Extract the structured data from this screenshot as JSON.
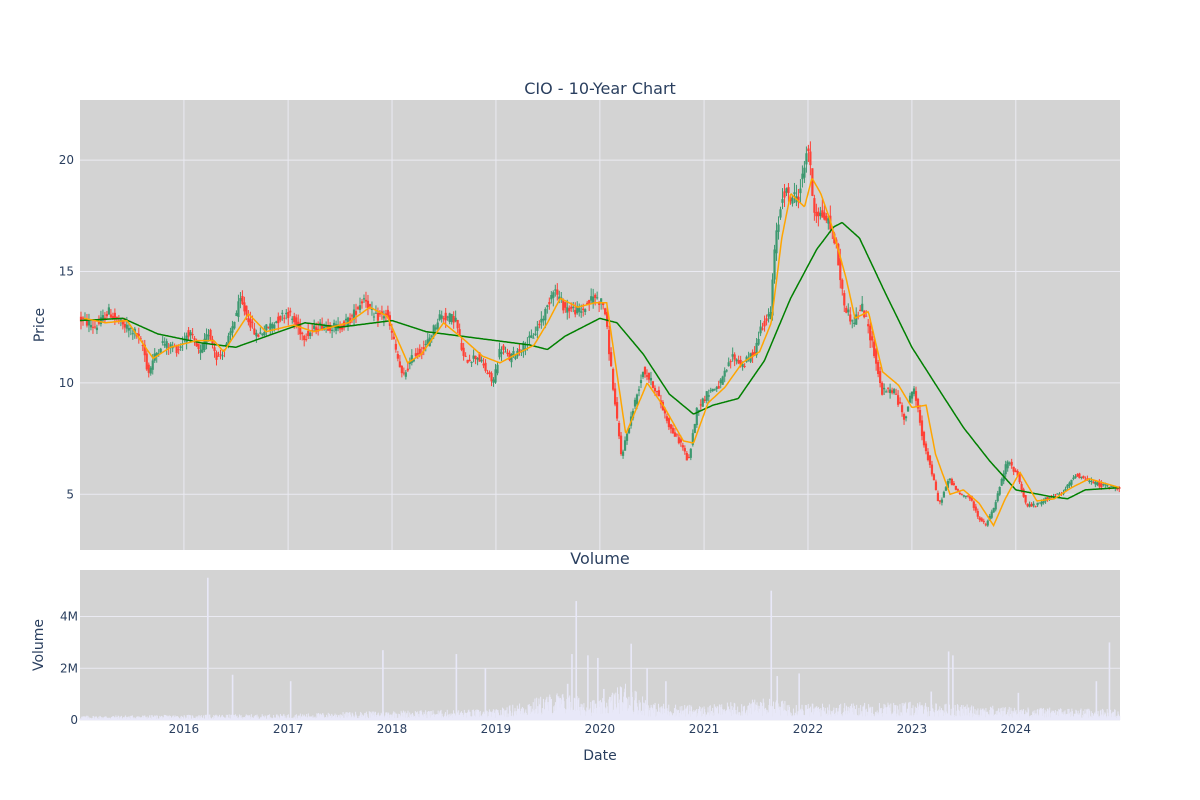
{
  "figure": {
    "title": "CIO - 10-Year Chart",
    "subplot_title": "Volume",
    "price_ylabel": "Price",
    "volume_ylabel": "Volume",
    "xlabel": "Date",
    "plot_bg": "#d3d3d3",
    "grid_color": "#eaeaf2",
    "text_color": "#2a3f5f"
  },
  "chart_data": [
    {
      "type": "candlestick",
      "title": "CIO - 10-Year Chart",
      "xlabel": "",
      "ylabel": "Price",
      "xlim": [
        "2015-01-01",
        "2025-01-01"
      ],
      "ylim": [
        2.5,
        22.7
      ],
      "yticks": [
        5,
        10,
        15,
        20
      ],
      "xticks": [
        "2016",
        "2017",
        "2018",
        "2019",
        "2020",
        "2021",
        "2022",
        "2023",
        "2024"
      ],
      "grid": true,
      "colors": {
        "up": "#3d9970",
        "down": "#ff4136",
        "ma_short": "#ffa500",
        "ma_long": "#008000"
      },
      "price_path": [
        [
          "2015-01-01",
          12.9
        ],
        [
          "2015-03-01",
          12.5
        ],
        [
          "2015-04-15",
          13.2
        ],
        [
          "2015-06-01",
          12.6
        ],
        [
          "2015-07-15",
          12.3
        ],
        [
          "2015-08-15",
          11.6
        ],
        [
          "2015-09-01",
          10.4
        ],
        [
          "2015-09-20",
          11.1
        ],
        [
          "2015-10-20",
          11.8
        ],
        [
          "2015-12-15",
          11.5
        ],
        [
          "2016-01-20",
          12.3
        ],
        [
          "2016-03-01",
          11.3
        ],
        [
          "2016-04-01",
          12.3
        ],
        [
          "2016-05-01",
          11.1
        ],
        [
          "2016-06-01",
          11.6
        ],
        [
          "2016-07-20",
          13.7
        ],
        [
          "2016-09-15",
          12.1
        ],
        [
          "2016-11-15",
          12.7
        ],
        [
          "2017-01-01",
          13.2
        ],
        [
          "2017-03-01",
          12.1
        ],
        [
          "2017-05-01",
          12.6
        ],
        [
          "2017-07-01",
          12.5
        ],
        [
          "2017-08-15",
          12.9
        ],
        [
          "2017-09-01",
          13.3
        ],
        [
          "2017-10-01",
          13.9
        ],
        [
          "2017-11-01",
          12.9
        ],
        [
          "2017-12-15",
          13.1
        ],
        [
          "2018-01-10",
          11.9
        ],
        [
          "2018-02-10",
          10.2
        ],
        [
          "2018-03-20",
          11.2
        ],
        [
          "2018-05-01",
          11.6
        ],
        [
          "2018-06-20",
          13.0
        ],
        [
          "2018-08-15",
          12.9
        ],
        [
          "2018-09-15",
          11.0
        ],
        [
          "2018-11-01",
          11.2
        ],
        [
          "2018-12-25",
          10.0
        ],
        [
          "2019-01-20",
          11.6
        ],
        [
          "2019-02-20",
          11.1
        ],
        [
          "2019-04-15",
          11.7
        ],
        [
          "2019-05-15",
          12.1
        ],
        [
          "2019-07-01",
          13.3
        ],
        [
          "2019-07-25",
          14.3
        ],
        [
          "2019-09-01",
          13.4
        ],
        [
          "2019-11-01",
          13.2
        ],
        [
          "2019-12-15",
          13.9
        ],
        [
          "2020-01-20",
          13.5
        ],
        [
          "2020-02-25",
          9.2
        ],
        [
          "2020-03-20",
          6.7
        ],
        [
          "2020-04-20",
          8.3
        ],
        [
          "2020-06-05",
          10.6
        ],
        [
          "2020-07-15",
          9.8
        ],
        [
          "2020-09-10",
          7.9
        ],
        [
          "2020-10-20",
          7.2
        ],
        [
          "2020-11-10",
          6.4
        ],
        [
          "2020-12-10",
          8.8
        ],
        [
          "2021-01-20",
          9.6
        ],
        [
          "2021-03-01",
          9.9
        ],
        [
          "2021-04-15",
          11.2
        ],
        [
          "2021-05-20",
          10.8
        ],
        [
          "2021-07-01",
          11.4
        ],
        [
          "2021-07-25",
          12.6
        ],
        [
          "2021-08-25",
          13.0
        ],
        [
          "2021-09-10",
          16.1
        ],
        [
          "2021-10-10",
          18.7
        ],
        [
          "2021-11-01",
          18.3
        ],
        [
          "2021-12-01",
          18.4
        ],
        [
          "2021-12-20",
          19.4
        ],
        [
          "2022-01-03",
          20.9
        ],
        [
          "2022-01-25",
          17.8
        ],
        [
          "2022-03-15",
          17.3
        ],
        [
          "2022-04-10",
          16.4
        ],
        [
          "2022-05-10",
          13.6
        ],
        [
          "2022-06-10",
          12.7
        ],
        [
          "2022-07-15",
          13.4
        ],
        [
          "2022-08-20",
          11.7
        ],
        [
          "2022-09-20",
          9.6
        ],
        [
          "2022-11-01",
          9.7
        ],
        [
          "2022-12-10",
          8.4
        ],
        [
          "2023-01-10",
          9.9
        ],
        [
          "2023-02-10",
          7.6
        ],
        [
          "2023-03-15",
          6.0
        ],
        [
          "2023-04-10",
          4.5
        ],
        [
          "2023-05-15",
          5.7
        ],
        [
          "2023-06-20",
          5.0
        ],
        [
          "2023-07-25",
          4.9
        ],
        [
          "2023-08-25",
          4.0
        ],
        [
          "2023-09-20",
          3.6
        ],
        [
          "2023-10-20",
          4.4
        ],
        [
          "2023-12-05",
          6.5
        ],
        [
          "2024-01-10",
          5.9
        ],
        [
          "2024-02-10",
          4.5
        ],
        [
          "2024-03-15",
          4.5
        ],
        [
          "2024-05-01",
          4.9
        ],
        [
          "2024-06-15",
          5.0
        ],
        [
          "2024-08-01",
          5.9
        ],
        [
          "2024-09-15",
          5.6
        ],
        [
          "2024-11-01",
          5.4
        ],
        [
          "2024-12-31",
          5.3
        ]
      ],
      "ma_short": [
        [
          "2015-01-15",
          12.9
        ],
        [
          "2015-04-01",
          12.7
        ],
        [
          "2015-06-15",
          12.8
        ],
        [
          "2015-09-15",
          11.1
        ],
        [
          "2015-11-15",
          11.6
        ],
        [
          "2016-02-15",
          11.9
        ],
        [
          "2016-04-15",
          11.9
        ],
        [
          "2016-05-20",
          11.4
        ],
        [
          "2016-08-15",
          13.1
        ],
        [
          "2016-10-15",
          12.3
        ],
        [
          "2017-01-20",
          12.6
        ],
        [
          "2017-04-01",
          12.3
        ],
        [
          "2017-08-01",
          12.7
        ],
        [
          "2017-10-15",
          13.4
        ],
        [
          "2017-12-15",
          13.0
        ],
        [
          "2018-02-25",
          10.9
        ],
        [
          "2018-04-15",
          11.3
        ],
        [
          "2018-07-01",
          12.7
        ],
        [
          "2018-09-15",
          11.9
        ],
        [
          "2018-11-15",
          11.2
        ],
        [
          "2019-01-15",
          10.9
        ],
        [
          "2019-03-15",
          11.3
        ],
        [
          "2019-05-15",
          11.7
        ],
        [
          "2019-07-01",
          12.7
        ],
        [
          "2019-08-15",
          13.8
        ],
        [
          "2019-10-15",
          13.4
        ],
        [
          "2019-12-15",
          13.6
        ],
        [
          "2020-01-25",
          13.6
        ],
        [
          "2020-04-01",
          7.7
        ],
        [
          "2020-06-15",
          10.0
        ],
        [
          "2020-08-15",
          8.9
        ],
        [
          "2020-10-20",
          7.4
        ],
        [
          "2020-11-25",
          7.3
        ],
        [
          "2021-01-15",
          9.1
        ],
        [
          "2021-03-15",
          9.8
        ],
        [
          "2021-05-15",
          10.9
        ],
        [
          "2021-07-15",
          11.4
        ],
        [
          "2021-08-25",
          12.7
        ],
        [
          "2021-10-01",
          16.5
        ],
        [
          "2021-11-01",
          18.5
        ],
        [
          "2021-12-20",
          17.9
        ],
        [
          "2022-01-15",
          19.2
        ],
        [
          "2022-02-15",
          18.5
        ],
        [
          "2022-03-20",
          17.3
        ],
        [
          "2022-05-15",
          14.7
        ],
        [
          "2022-06-15",
          12.9
        ],
        [
          "2022-08-01",
          13.2
        ],
        [
          "2022-09-20",
          10.5
        ],
        [
          "2022-11-15",
          9.9
        ],
        [
          "2023-01-01",
          8.9
        ],
        [
          "2023-02-20",
          9.0
        ],
        [
          "2023-03-25",
          6.8
        ],
        [
          "2023-05-15",
          5.0
        ],
        [
          "2023-07-01",
          5.2
        ],
        [
          "2023-08-25",
          4.6
        ],
        [
          "2023-10-15",
          3.6
        ],
        [
          "2023-11-25",
          4.8
        ],
        [
          "2024-01-15",
          6.0
        ],
        [
          "2024-03-15",
          4.7
        ],
        [
          "2024-05-15",
          4.8
        ],
        [
          "2024-07-15",
          5.3
        ],
        [
          "2024-09-15",
          5.7
        ],
        [
          "2024-12-31",
          5.3
        ]
      ],
      "ma_long": [
        [
          "2015-01-01",
          12.8
        ],
        [
          "2015-06-01",
          12.9
        ],
        [
          "2015-10-01",
          12.2
        ],
        [
          "2016-03-01",
          11.8
        ],
        [
          "2016-07-01",
          11.6
        ],
        [
          "2016-12-01",
          12.3
        ],
        [
          "2017-03-01",
          12.7
        ],
        [
          "2017-07-01",
          12.5
        ],
        [
          "2018-01-01",
          12.8
        ],
        [
          "2018-05-01",
          12.3
        ],
        [
          "2018-09-01",
          12.1
        ],
        [
          "2019-01-01",
          11.9
        ],
        [
          "2019-05-01",
          11.7
        ],
        [
          "2019-07-01",
          11.5
        ],
        [
          "2019-09-01",
          12.1
        ],
        [
          "2020-01-01",
          12.9
        ],
        [
          "2020-03-01",
          12.7
        ],
        [
          "2020-06-01",
          11.3
        ],
        [
          "2020-09-01",
          9.5
        ],
        [
          "2020-11-25",
          8.6
        ],
        [
          "2021-02-01",
          9.0
        ],
        [
          "2021-05-01",
          9.3
        ],
        [
          "2021-08-01",
          11.0
        ],
        [
          "2021-11-01",
          13.8
        ],
        [
          "2022-02-01",
          16.0
        ],
        [
          "2022-04-01",
          17.0
        ],
        [
          "2022-05-01",
          17.2
        ],
        [
          "2022-07-01",
          16.5
        ],
        [
          "2022-10-01",
          14.0
        ],
        [
          "2023-01-01",
          11.6
        ],
        [
          "2023-04-01",
          9.8
        ],
        [
          "2023-07-01",
          8.0
        ],
        [
          "2023-10-01",
          6.5
        ],
        [
          "2024-01-01",
          5.2
        ],
        [
          "2024-05-01",
          4.9
        ],
        [
          "2024-07-01",
          4.8
        ],
        [
          "2024-09-01",
          5.2
        ],
        [
          "2024-12-31",
          5.3
        ]
      ]
    },
    {
      "type": "bar",
      "title": "Volume",
      "xlabel": "Date",
      "ylabel": "Volume",
      "ylim": [
        0,
        5800000
      ],
      "yticks": [
        0,
        2000000,
        4000000
      ],
      "ytick_labels": [
        "0",
        "2M",
        "4M"
      ],
      "xticks": [
        "2016",
        "2017",
        "2018",
        "2019",
        "2020",
        "2021",
        "2022",
        "2023",
        "2024"
      ],
      "bar_color": "#e8e8f8",
      "base_level": [
        [
          "2015-01-01",
          100000
        ],
        [
          "2016-01-01",
          120000
        ],
        [
          "2017-01-01",
          140000
        ],
        [
          "2018-01-01",
          220000
        ],
        [
          "2019-01-01",
          250000
        ],
        [
          "2019-08-01",
          650000
        ],
        [
          "2020-01-01",
          450000
        ],
        [
          "2020-04-01",
          900000
        ],
        [
          "2020-07-01",
          400000
        ],
        [
          "2021-01-01",
          330000
        ],
        [
          "2021-08-01",
          500000
        ],
        [
          "2022-01-01",
          380000
        ],
        [
          "2023-01-01",
          420000
        ],
        [
          "2024-01-01",
          300000
        ],
        [
          "2024-12-31",
          250000
        ]
      ],
      "spikes": [
        [
          "2016-03-25",
          5500000
        ],
        [
          "2016-06-20",
          1750000
        ],
        [
          "2017-01-10",
          1500000
        ],
        [
          "2017-11-30",
          2700000
        ],
        [
          "2018-08-15",
          2550000
        ],
        [
          "2018-11-25",
          2000000
        ],
        [
          "2019-09-10",
          1400000
        ],
        [
          "2019-09-25",
          2550000
        ],
        [
          "2019-10-10",
          4600000
        ],
        [
          "2019-11-20",
          2500000
        ],
        [
          "2019-12-25",
          2400000
        ],
        [
          "2020-01-15",
          1200000
        ],
        [
          "2020-04-20",
          2950000
        ],
        [
          "2020-06-15",
          2000000
        ],
        [
          "2020-08-20",
          1500000
        ],
        [
          "2021-08-25",
          5000000
        ],
        [
          "2021-09-15",
          1700000
        ],
        [
          "2021-12-01",
          1800000
        ],
        [
          "2023-05-10",
          2650000
        ],
        [
          "2023-05-25",
          2500000
        ],
        [
          "2023-03-10",
          1100000
        ],
        [
          "2024-01-10",
          1050000
        ],
        [
          "2024-10-10",
          1500000
        ],
        [
          "2024-11-25",
          3000000
        ]
      ]
    }
  ]
}
